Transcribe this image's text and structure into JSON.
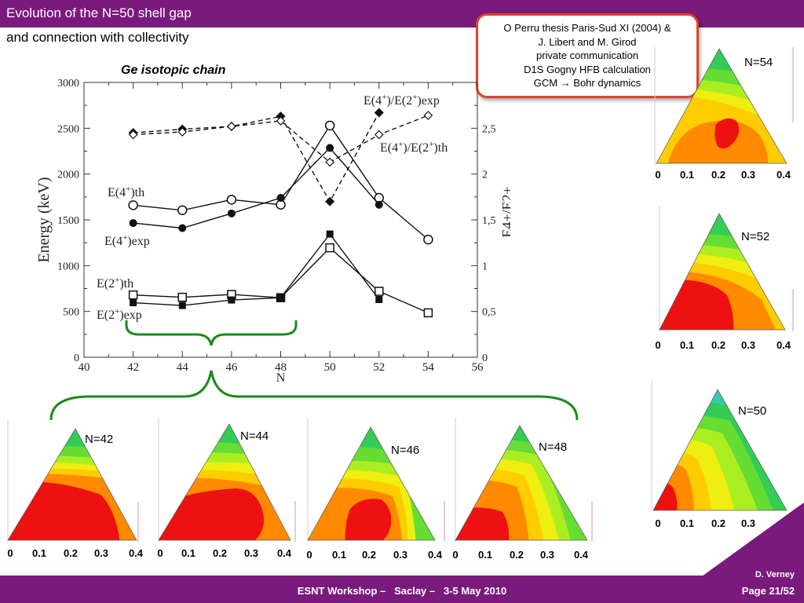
{
  "header": {
    "title_line1": "Evolution of the N=50 shell gap",
    "title_line2": "and connection with collectivity"
  },
  "reference": {
    "line1": "O Perru thesis Paris-Sud XI (2004) &",
    "line2": "J. Libert and M. Girod",
    "line3": "private communication",
    "line4": "D1S Gogny HFB calculation",
    "line5": "GCM → Bohr dynamics"
  },
  "chart_title": "Ge isotopic chain",
  "chart_data": {
    "type": "line",
    "title": "Ge isotopic chain",
    "xlabel": "N",
    "ylabel": "Energy (keV)",
    "y2label": "E4+/E2+",
    "xlim": [
      40,
      56
    ],
    "ylim": [
      0,
      3000
    ],
    "y2lim": [
      0,
      3
    ],
    "x_ticks": [
      "40",
      "42",
      "44",
      "46",
      "48",
      "50",
      "52",
      "54",
      "56"
    ],
    "y_ticks": [
      "0",
      "500",
      "1000",
      "1500",
      "2000",
      "2500",
      "3000"
    ],
    "y2_ticks": [
      "0",
      "0,5",
      "1",
      "1,5",
      "2",
      "2,5"
    ],
    "grid": false,
    "series": [
      {
        "name": "E(4+)/E(2+)exp",
        "axis": "right",
        "style": "dashed",
        "marker": "filled-diamond",
        "x": [
          42,
          44,
          46,
          48,
          50,
          52
        ],
        "values": [
          2.45,
          2.49,
          2.52,
          2.63,
          1.7,
          2.67
        ]
      },
      {
        "name": "E(4+)/E(2+)th",
        "axis": "right",
        "style": "dashed",
        "marker": "open-diamond",
        "x": [
          42,
          44,
          46,
          48,
          50,
          52,
          54
        ],
        "values": [
          2.43,
          2.46,
          2.52,
          2.58,
          2.13,
          2.43,
          2.64
        ]
      },
      {
        "name": "E(4+)th",
        "axis": "left",
        "style": "solid",
        "marker": "open-circle",
        "x": [
          42,
          44,
          46,
          48,
          50,
          52,
          54
        ],
        "values": [
          1660,
          1605,
          1720,
          1665,
          2530,
          1740,
          1285
        ]
      },
      {
        "name": "E(4+)exp",
        "axis": "left",
        "style": "solid",
        "marker": "filled-circle",
        "x": [
          42,
          44,
          46,
          48,
          50,
          52
        ],
        "values": [
          1465,
          1410,
          1570,
          1740,
          2285,
          1665
        ]
      },
      {
        "name": "E(2+)th",
        "axis": "left",
        "style": "solid",
        "marker": "open-square",
        "x": [
          42,
          44,
          46,
          48,
          50,
          52,
          54
        ],
        "values": [
          680,
          655,
          685,
          650,
          1195,
          720,
          485
        ]
      },
      {
        "name": "E(2+)exp",
        "axis": "left",
        "style": "solid",
        "marker": "filled-square",
        "x": [
          42,
          44,
          46,
          48,
          50,
          52
        ],
        "values": [
          595,
          565,
          625,
          650,
          1345,
          630
        ]
      }
    ],
    "annotations": [
      {
        "text": "E(4+)/E(2+)exp"
      },
      {
        "text": "E(4+)/E(2+)th"
      },
      {
        "text": "E(4+)th"
      },
      {
        "text": "E(4+)exp"
      },
      {
        "text": "E(2+)th"
      },
      {
        "text": "E(2+)exp"
      }
    ]
  },
  "potential_maps": {
    "axis_labels": [
      "0",
      "0.1",
      "0.2",
      "0.3",
      "0.4"
    ],
    "axis_labels_short": [
      "0",
      "0.1",
      "0.2",
      "0.3"
    ],
    "maps": [
      {
        "label": "N=42"
      },
      {
        "label": "N=44"
      },
      {
        "label": "N=46"
      },
      {
        "label": "N=48"
      },
      {
        "label": "N=50"
      },
      {
        "label": "N=52"
      },
      {
        "label": "N=54"
      }
    ]
  },
  "colors": {
    "brand_purple": "#7a1a7c",
    "box_border": "#e2452b",
    "bracket_green": "#1a8a1a"
  },
  "footer": {
    "text": "ESNT Workshop –   Saclay –   3-5 May 2010",
    "author": "D. Verney",
    "page": "Page 21/52"
  }
}
